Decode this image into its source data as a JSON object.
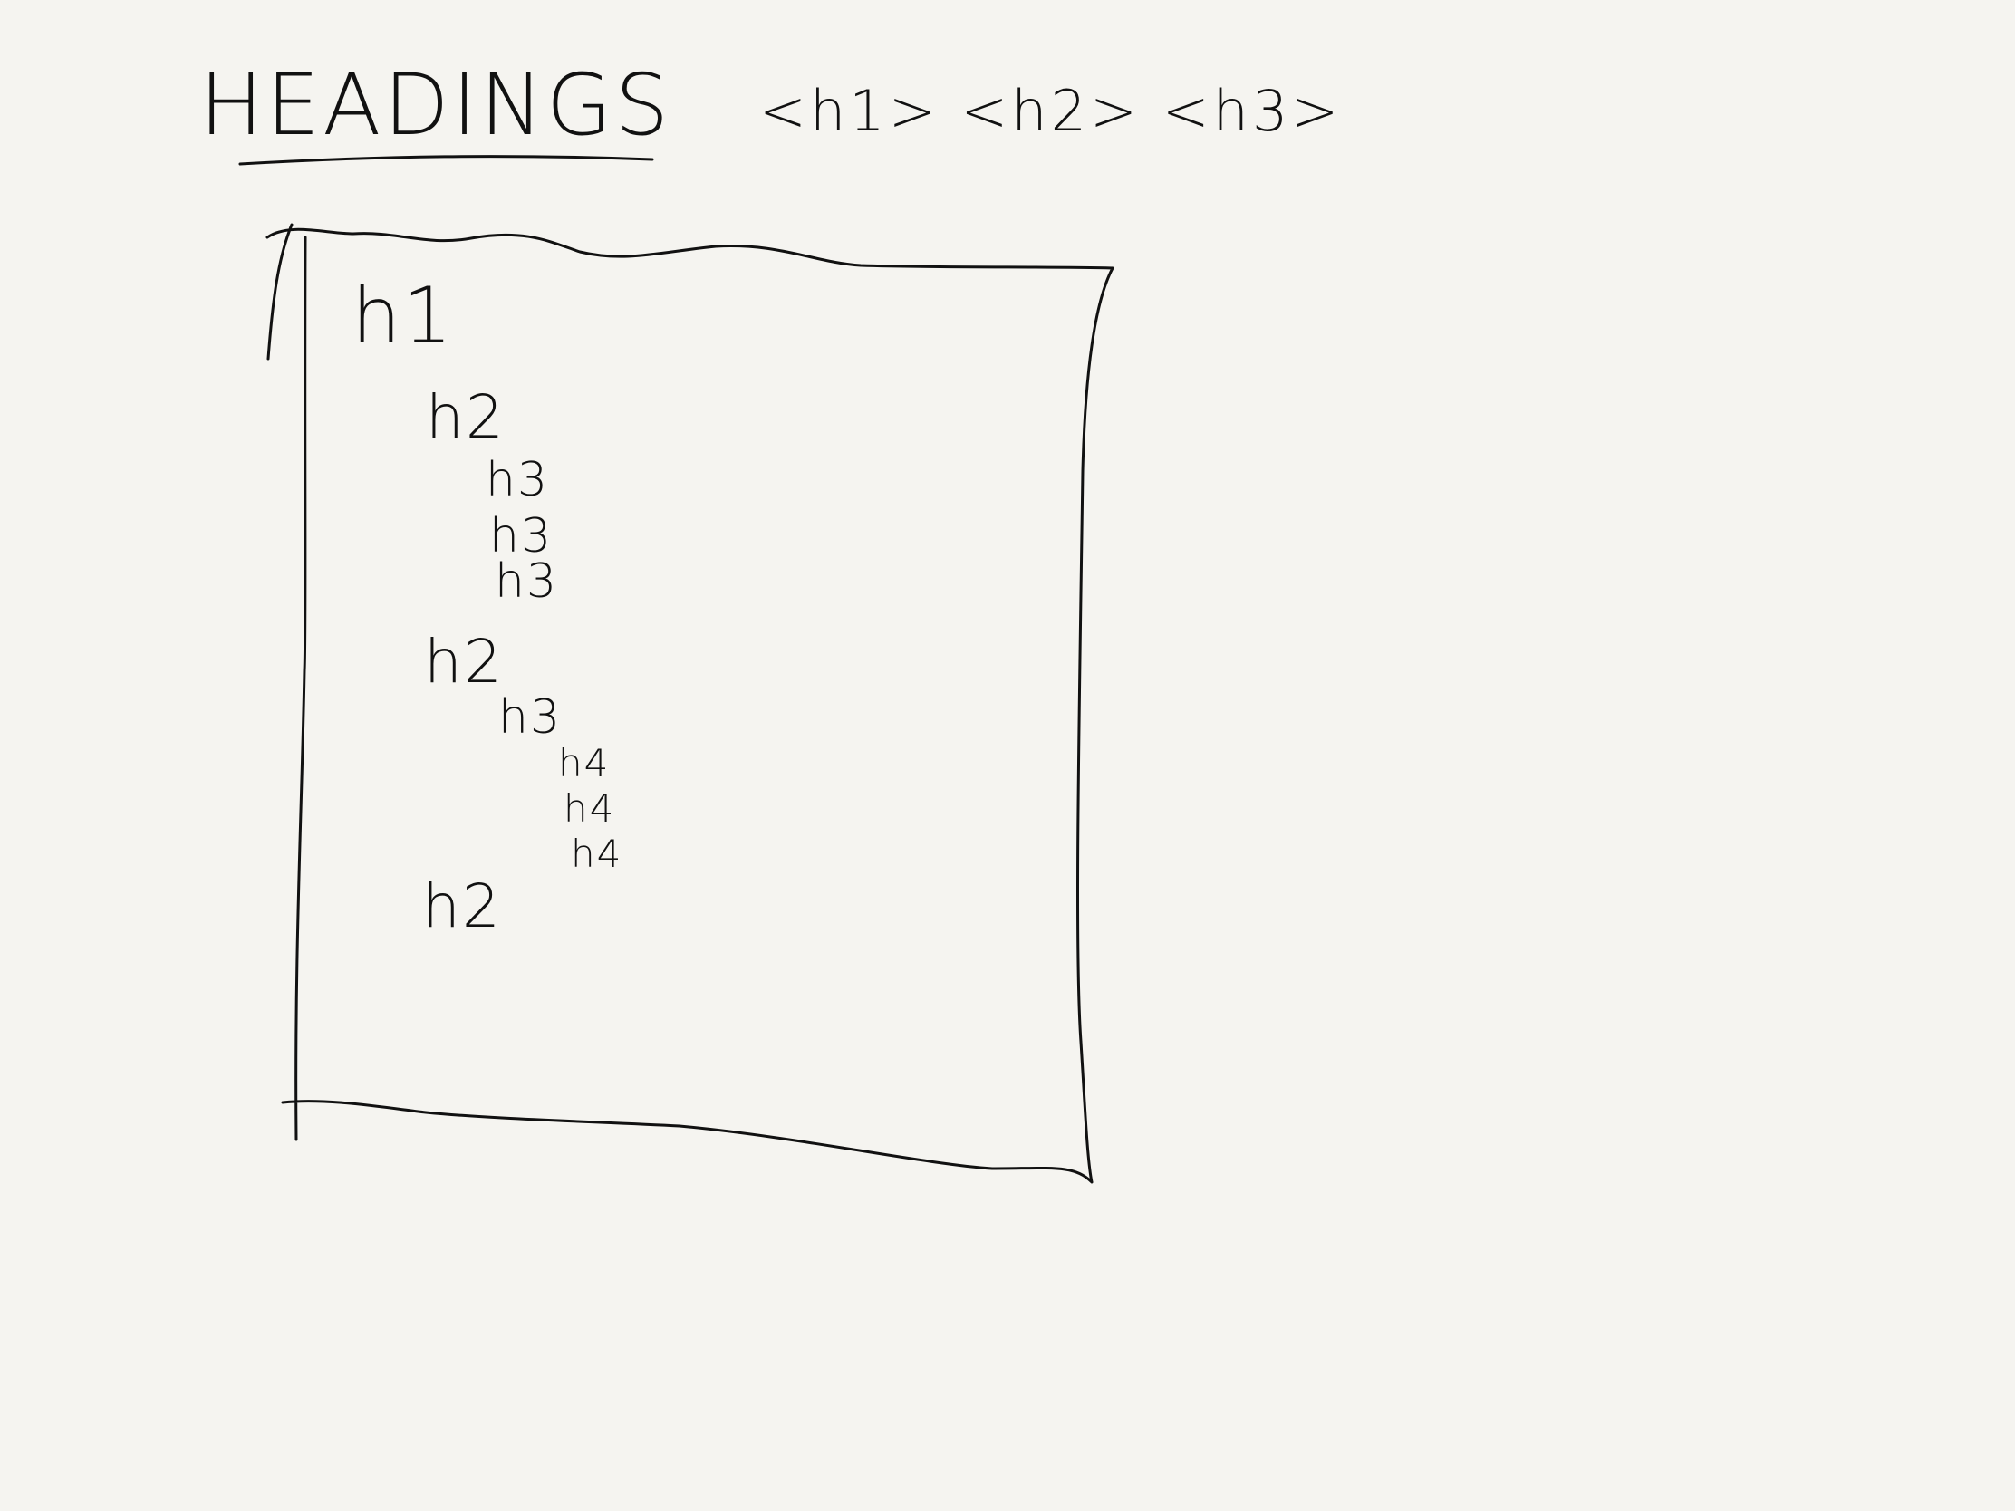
{
  "title": "HEADINGS",
  "tags": "<h1> <h2> <h3>",
  "outline": {
    "items": [
      {
        "label": "h1",
        "level": 1
      },
      {
        "label": "h2",
        "level": 2
      },
      {
        "label": "h3",
        "level": 3
      },
      {
        "label": "h3",
        "level": 3
      },
      {
        "label": "h3",
        "level": 3
      },
      {
        "label": "h2",
        "level": 2
      },
      {
        "label": "h3",
        "level": 3
      },
      {
        "label": "h4",
        "level": 4
      },
      {
        "label": "h4",
        "level": 4
      },
      {
        "label": "h4",
        "level": 4
      },
      {
        "label": "h2",
        "level": 2
      }
    ]
  }
}
